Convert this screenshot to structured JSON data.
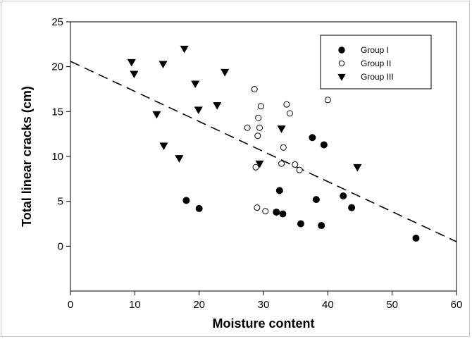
{
  "chart_data": {
    "type": "scatter",
    "title": "",
    "xlabel": "Moisture content",
    "ylabel": "Total linear cracks (cm)",
    "xlim": [
      0,
      60
    ],
    "ylim": [
      -5,
      25
    ],
    "xticks": [
      0,
      10,
      20,
      30,
      40,
      50,
      60
    ],
    "yticks": [
      0,
      5,
      10,
      15,
      20,
      25
    ],
    "grid": false,
    "legend": "top-right",
    "series": [
      {
        "name": "Group I",
        "marker": "filled-circle",
        "color": "#000000",
        "x": [
          18.0,
          20.0,
          32.0,
          32.5,
          33.0,
          35.8,
          37.6,
          38.2,
          39.0,
          39.4,
          42.4,
          43.7,
          53.7
        ],
        "y": [
          5.1,
          4.2,
          3.8,
          6.2,
          3.6,
          2.5,
          12.1,
          5.2,
          2.3,
          11.3,
          5.6,
          4.3,
          0.9
        ]
      },
      {
        "name": "Group II",
        "marker": "open-circle",
        "color": "#000000",
        "x": [
          27.5,
          28.6,
          28.8,
          29.0,
          29.1,
          29.2,
          29.4,
          29.6,
          30.3,
          32.8,
          33.1,
          33.6,
          34.1,
          34.9,
          35.6,
          40.0
        ],
        "y": [
          13.2,
          17.5,
          8.8,
          4.3,
          12.3,
          14.3,
          13.2,
          15.6,
          3.9,
          9.2,
          11.0,
          15.8,
          14.8,
          9.1,
          8.5,
          16.3
        ]
      },
      {
        "name": "Group III",
        "marker": "filled-triangle-down",
        "color": "#000000",
        "x": [
          9.5,
          9.9,
          13.4,
          14.4,
          14.5,
          16.9,
          17.7,
          19.4,
          19.9,
          22.8,
          24.0,
          29.4,
          32.8,
          44.6
        ],
        "y": [
          20.5,
          19.2,
          14.7,
          20.3,
          11.2,
          9.8,
          22.0,
          18.1,
          15.2,
          15.7,
          19.4,
          9.2,
          13.1,
          8.8
        ]
      }
    ],
    "fit_line": {
      "style": "dashed",
      "x": [
        0,
        60
      ],
      "y": [
        20.6,
        0.5
      ]
    }
  }
}
